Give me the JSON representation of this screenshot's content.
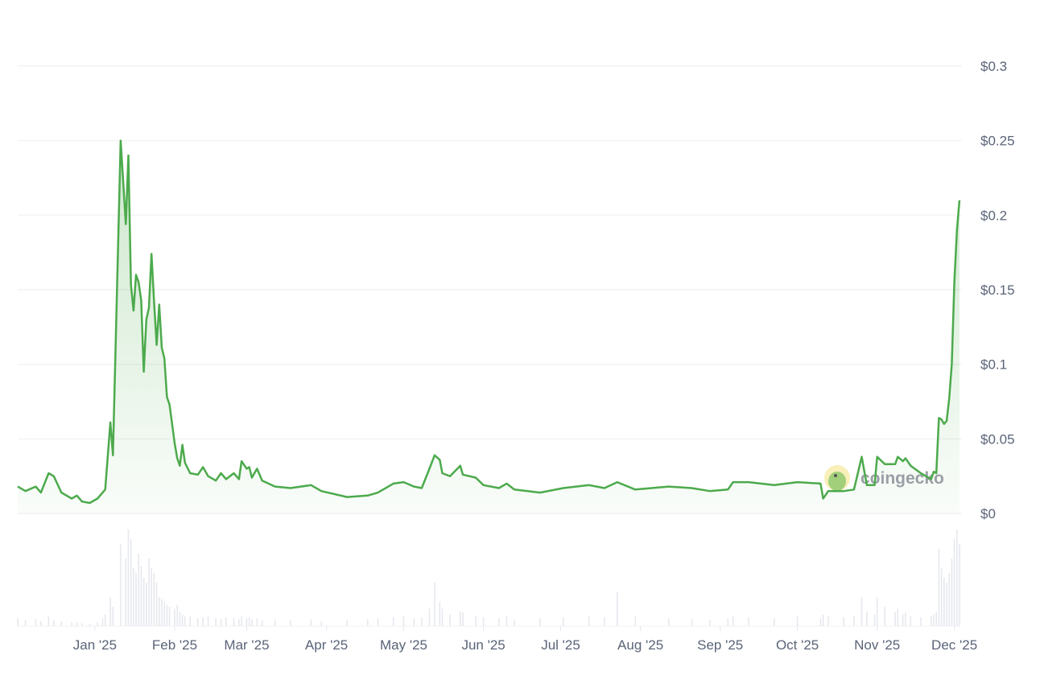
{
  "chart_data": {
    "type": "area",
    "title": "",
    "xlabel": "",
    "ylabel": "",
    "x_domain": [
      "2024-12-02",
      "2025-12-03"
    ],
    "ylim": [
      0,
      0.3
    ],
    "y_ticks": [
      0,
      0.05,
      0.1,
      0.15,
      0.2,
      0.25,
      0.3
    ],
    "y_tick_labels": [
      "$0",
      "$0.05",
      "$0.1",
      "$0.15",
      "$0.2",
      "$0.25",
      "$0.3"
    ],
    "x_ticks": [
      "2025-01-01",
      "2025-02-01",
      "2025-03-01",
      "2025-04-01",
      "2025-05-01",
      "2025-06-01",
      "2025-07-01",
      "2025-08-01",
      "2025-09-01",
      "2025-10-01",
      "2025-11-01",
      "2025-12-01"
    ],
    "x_tick_labels": [
      "Jan '25",
      "Feb '25",
      "Mar '25",
      "Apr '25",
      "May '25",
      "Jun '25",
      "Jul '25",
      "Aug '25",
      "Sep '25",
      "Oct '25",
      "Nov '25",
      "Dec '25"
    ],
    "grid": true,
    "y_axis_position": "right",
    "line_color": "#4caa4c",
    "fill_color": "#4caa4c",
    "volume_color": "#e6e8ee",
    "watermark": "coingecko",
    "series": [
      {
        "dates": [
          "2024-12-02",
          "2024-12-05",
          "2024-12-09",
          "2024-12-11",
          "2024-12-14",
          "2024-12-16",
          "2024-12-19",
          "2024-12-23",
          "2024-12-25",
          "2024-12-27",
          "2024-12-30",
          "2025-01-02",
          "2025-01-04",
          "2025-01-05",
          "2025-01-07",
          "2025-01-08",
          "2025-01-11",
          "2025-01-13",
          "2025-01-14",
          "2025-01-15",
          "2025-01-16",
          "2025-01-17",
          "2025-01-18",
          "2025-01-19",
          "2025-01-20",
          "2025-01-21",
          "2025-01-22",
          "2025-01-23",
          "2025-01-24",
          "2025-01-25",
          "2025-01-26",
          "2025-01-27",
          "2025-01-28",
          "2025-01-29",
          "2025-01-30",
          "2025-02-01",
          "2025-02-02",
          "2025-02-03",
          "2025-02-04",
          "2025-02-05",
          "2025-02-07",
          "2025-02-10",
          "2025-02-12",
          "2025-02-14",
          "2025-02-17",
          "2025-02-19",
          "2025-02-21",
          "2025-02-24",
          "2025-02-26",
          "2025-02-27",
          "2025-03-01",
          "2025-03-02",
          "2025-03-03",
          "2025-03-05",
          "2025-03-07",
          "2025-03-12",
          "2025-03-18",
          "2025-03-26",
          "2025-03-30",
          "2025-04-09",
          "2025-04-17",
          "2025-04-21",
          "2025-04-27",
          "2025-05-01",
          "2025-05-05",
          "2025-05-08",
          "2025-05-11",
          "2025-05-13",
          "2025-05-15",
          "2025-05-16",
          "2025-05-19",
          "2025-05-23",
          "2025-05-24",
          "2025-05-29",
          "2025-06-01",
          "2025-06-07",
          "2025-06-10",
          "2025-06-13",
          "2025-06-23",
          "2025-07-02",
          "2025-07-12",
          "2025-07-18",
          "2025-07-23",
          "2025-07-30",
          "2025-08-12",
          "2025-08-21",
          "2025-08-28",
          "2025-09-04",
          "2025-09-06",
          "2025-09-12",
          "2025-09-22",
          "2025-10-01",
          "2025-10-10",
          "2025-10-11",
          "2025-10-13",
          "2025-10-19",
          "2025-10-23",
          "2025-10-26",
          "2025-10-28",
          "2025-10-31",
          "2025-11-01",
          "2025-11-04",
          "2025-11-08",
          "2025-11-09",
          "2025-11-11",
          "2025-11-12",
          "2025-11-14",
          "2025-11-18",
          "2025-11-22",
          "2025-11-23",
          "2025-11-24",
          "2025-11-25",
          "2025-11-26",
          "2025-11-27",
          "2025-11-28",
          "2025-11-29",
          "2025-11-30",
          "2025-12-01",
          "2025-12-02",
          "2025-12-03"
        ],
        "prices": [
          0.018,
          0.015,
          0.018,
          0.014,
          0.027,
          0.025,
          0.014,
          0.01,
          0.012,
          0.008,
          0.007,
          0.01,
          0.014,
          0.016,
          0.061,
          0.039,
          0.25,
          0.194,
          0.24,
          0.153,
          0.136,
          0.16,
          0.155,
          0.143,
          0.095,
          0.13,
          0.138,
          0.174,
          0.142,
          0.113,
          0.14,
          0.111,
          0.104,
          0.078,
          0.073,
          0.047,
          0.037,
          0.032,
          0.046,
          0.034,
          0.027,
          0.026,
          0.031,
          0.025,
          0.022,
          0.027,
          0.023,
          0.027,
          0.023,
          0.035,
          0.03,
          0.031,
          0.024,
          0.03,
          0.022,
          0.018,
          0.017,
          0.019,
          0.015,
          0.011,
          0.012,
          0.014,
          0.02,
          0.021,
          0.018,
          0.017,
          0.03,
          0.039,
          0.036,
          0.027,
          0.025,
          0.032,
          0.026,
          0.024,
          0.019,
          0.017,
          0.02,
          0.016,
          0.014,
          0.017,
          0.019,
          0.017,
          0.021,
          0.016,
          0.018,
          0.017,
          0.015,
          0.016,
          0.021,
          0.021,
          0.019,
          0.021,
          0.02,
          0.01,
          0.015,
          0.015,
          0.016,
          0.038,
          0.019,
          0.019,
          0.038,
          0.033,
          0.033,
          0.038,
          0.035,
          0.037,
          0.032,
          0.027,
          0.023,
          0.028,
          0.027,
          0.064,
          0.063,
          0.06,
          0.062,
          0.077,
          0.1,
          0.155,
          0.19,
          0.21
        ],
        "volume_relative": [
          0.08,
          0.06,
          0.07,
          0.05,
          0.1,
          0.06,
          0.05,
          0.04,
          0.04,
          0.03,
          0.02,
          0.04,
          0.08,
          0.12,
          0.3,
          0.2,
          0.85,
          0.7,
          1.0,
          0.9,
          0.6,
          0.55,
          0.75,
          0.62,
          0.5,
          0.45,
          0.7,
          0.6,
          0.55,
          0.45,
          0.3,
          0.28,
          0.25,
          0.22,
          0.2,
          0.18,
          0.22,
          0.15,
          0.12,
          0.1,
          0.1,
          0.08,
          0.09,
          0.1,
          0.08,
          0.07,
          0.09,
          0.08,
          0.07,
          0.1,
          0.08,
          0.09,
          0.07,
          0.08,
          0.06,
          0.07,
          0.06,
          0.07,
          0.05,
          0.06,
          0.07,
          0.08,
          0.09,
          0.1,
          0.08,
          0.09,
          0.18,
          0.45,
          0.25,
          0.18,
          0.12,
          0.15,
          0.14,
          0.1,
          0.09,
          0.08,
          0.1,
          0.07,
          0.08,
          0.09,
          0.1,
          0.09,
          0.35,
          0.1,
          0.08,
          0.07,
          0.06,
          0.08,
          0.1,
          0.09,
          0.08,
          0.1,
          0.08,
          0.12,
          0.1,
          0.09,
          0.1,
          0.3,
          0.15,
          0.12,
          0.3,
          0.2,
          0.15,
          0.18,
          0.12,
          0.14,
          0.1,
          0.09,
          0.1,
          0.12,
          0.15,
          0.8,
          0.6,
          0.5,
          0.45,
          0.55,
          0.7,
          0.9,
          1.0,
          0.85
        ]
      }
    ]
  }
}
